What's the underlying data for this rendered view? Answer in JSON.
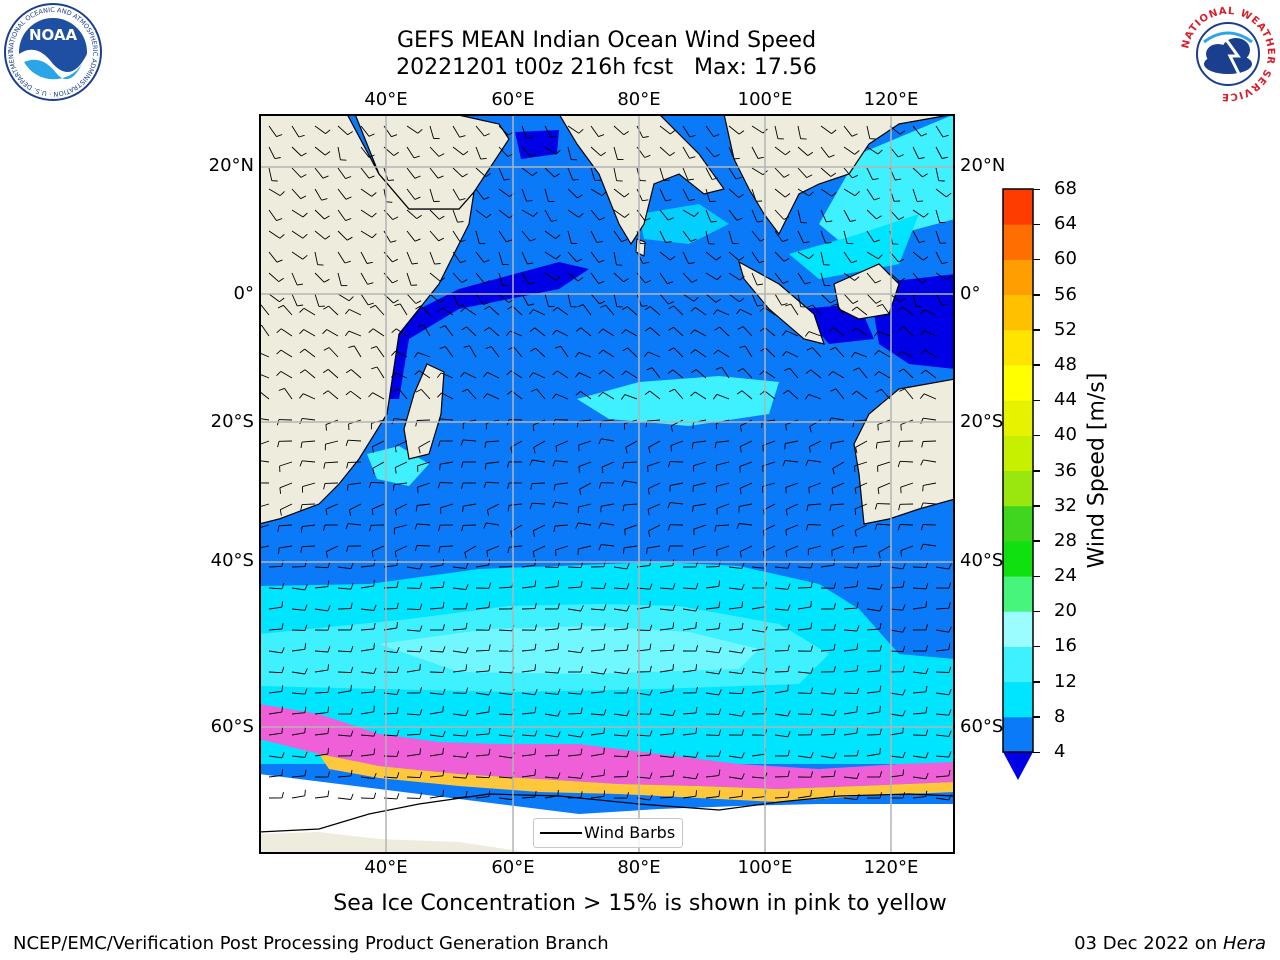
{
  "header": {
    "title_line1": "GEFS MEAN Indian Ocean Wind Speed",
    "title_line2": "20221201 t00z 216h fcst   Max: 17.56"
  },
  "logos": {
    "noaa_text": "NOAA",
    "noaa_ring_text": "NATIONAL OCEANIC AND ATMOSPHERIC ADMINISTRATION · U.S. DEPARTMENT OF COMMERCE",
    "nws_ring_text": "NATIONAL WEATHER SERVICE"
  },
  "map": {
    "lon_labels": [
      "40°E",
      "60°E",
      "80°E",
      "100°E",
      "120°E"
    ],
    "lat_labels": [
      "20°N",
      "0°",
      "20°S",
      "40°S",
      "60°S"
    ],
    "legend_label": "Wind Barbs",
    "colors": {
      "land": "#eeecdc",
      "ice_free_white": "#ffffff",
      "grid": "#b4b4b4"
    }
  },
  "colorbar": {
    "label": "Wind Speed [m/s]",
    "ticks": [
      "4",
      "8",
      "12",
      "16",
      "20",
      "24",
      "28",
      "32",
      "36",
      "40",
      "44",
      "48",
      "52",
      "56",
      "60",
      "64",
      "68"
    ],
    "colors": [
      "#0a7af8",
      "#00e5ff",
      "#3ff0ff",
      "#9bfdff",
      "#48f57c",
      "#10e010",
      "#40d620",
      "#9ae70f",
      "#c6f000",
      "#e6f200",
      "#ffff00",
      "#ffe400",
      "#ffc000",
      "#ff9e00",
      "#ff6e00",
      "#ff3c00",
      "#ff0000"
    ],
    "under_color": "#0000e6"
  },
  "caption": "Sea Ice Concentration > 15% is shown in pink to yellow",
  "footer": {
    "left": "NCEP/EMC/Verification Post Processing Product Generation Branch",
    "right_prefix": "03 Dec 2022 on ",
    "right_machine": "Hera"
  }
}
